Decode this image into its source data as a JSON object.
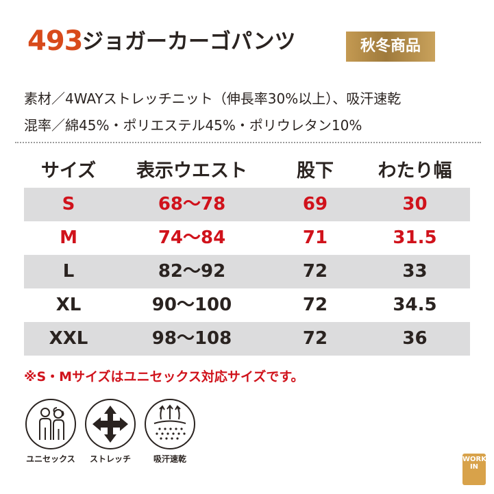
{
  "header": {
    "product_number": "493",
    "product_name": "ジョガーカーゴパンツ",
    "season_badge": "秋冬商品"
  },
  "specs": {
    "material": "素材／4WAYストレッチニット（伸長率30%以上）、吸汗速乾",
    "blend": "混率／綿45%・ポリエステル45%・ポリウレタン10%"
  },
  "table": {
    "headers": [
      "サイズ",
      "表示ウエスト",
      "股下",
      "わたり幅"
    ],
    "rows": [
      [
        "S",
        "68〜78",
        "69",
        "30"
      ],
      [
        "M",
        "74〜84",
        "71",
        "31.5"
      ],
      [
        "L",
        "82〜92",
        "72",
        "33"
      ],
      [
        "XL",
        "90〜100",
        "72",
        "34.5"
      ],
      [
        "XXL",
        "98〜108",
        "72",
        "36"
      ]
    ]
  },
  "note": "※S・Mサイズはユニセックス対応サイズです。",
  "features": [
    {
      "icon": "unisex-icon",
      "label": "ユニセックス"
    },
    {
      "icon": "stretch-icon",
      "label": "ストレッチ"
    },
    {
      "icon": "sweat-absorb-quickdry-icon",
      "label": "吸汗速乾"
    }
  ],
  "brand_badge": "WORK IN",
  "colors": {
    "product_number": "#d84a1b",
    "season_badge_gold": "#b08a47",
    "unisex_size_text": "#d0121b",
    "text": "#2a2320",
    "row_shade": "#dcdcdd"
  }
}
